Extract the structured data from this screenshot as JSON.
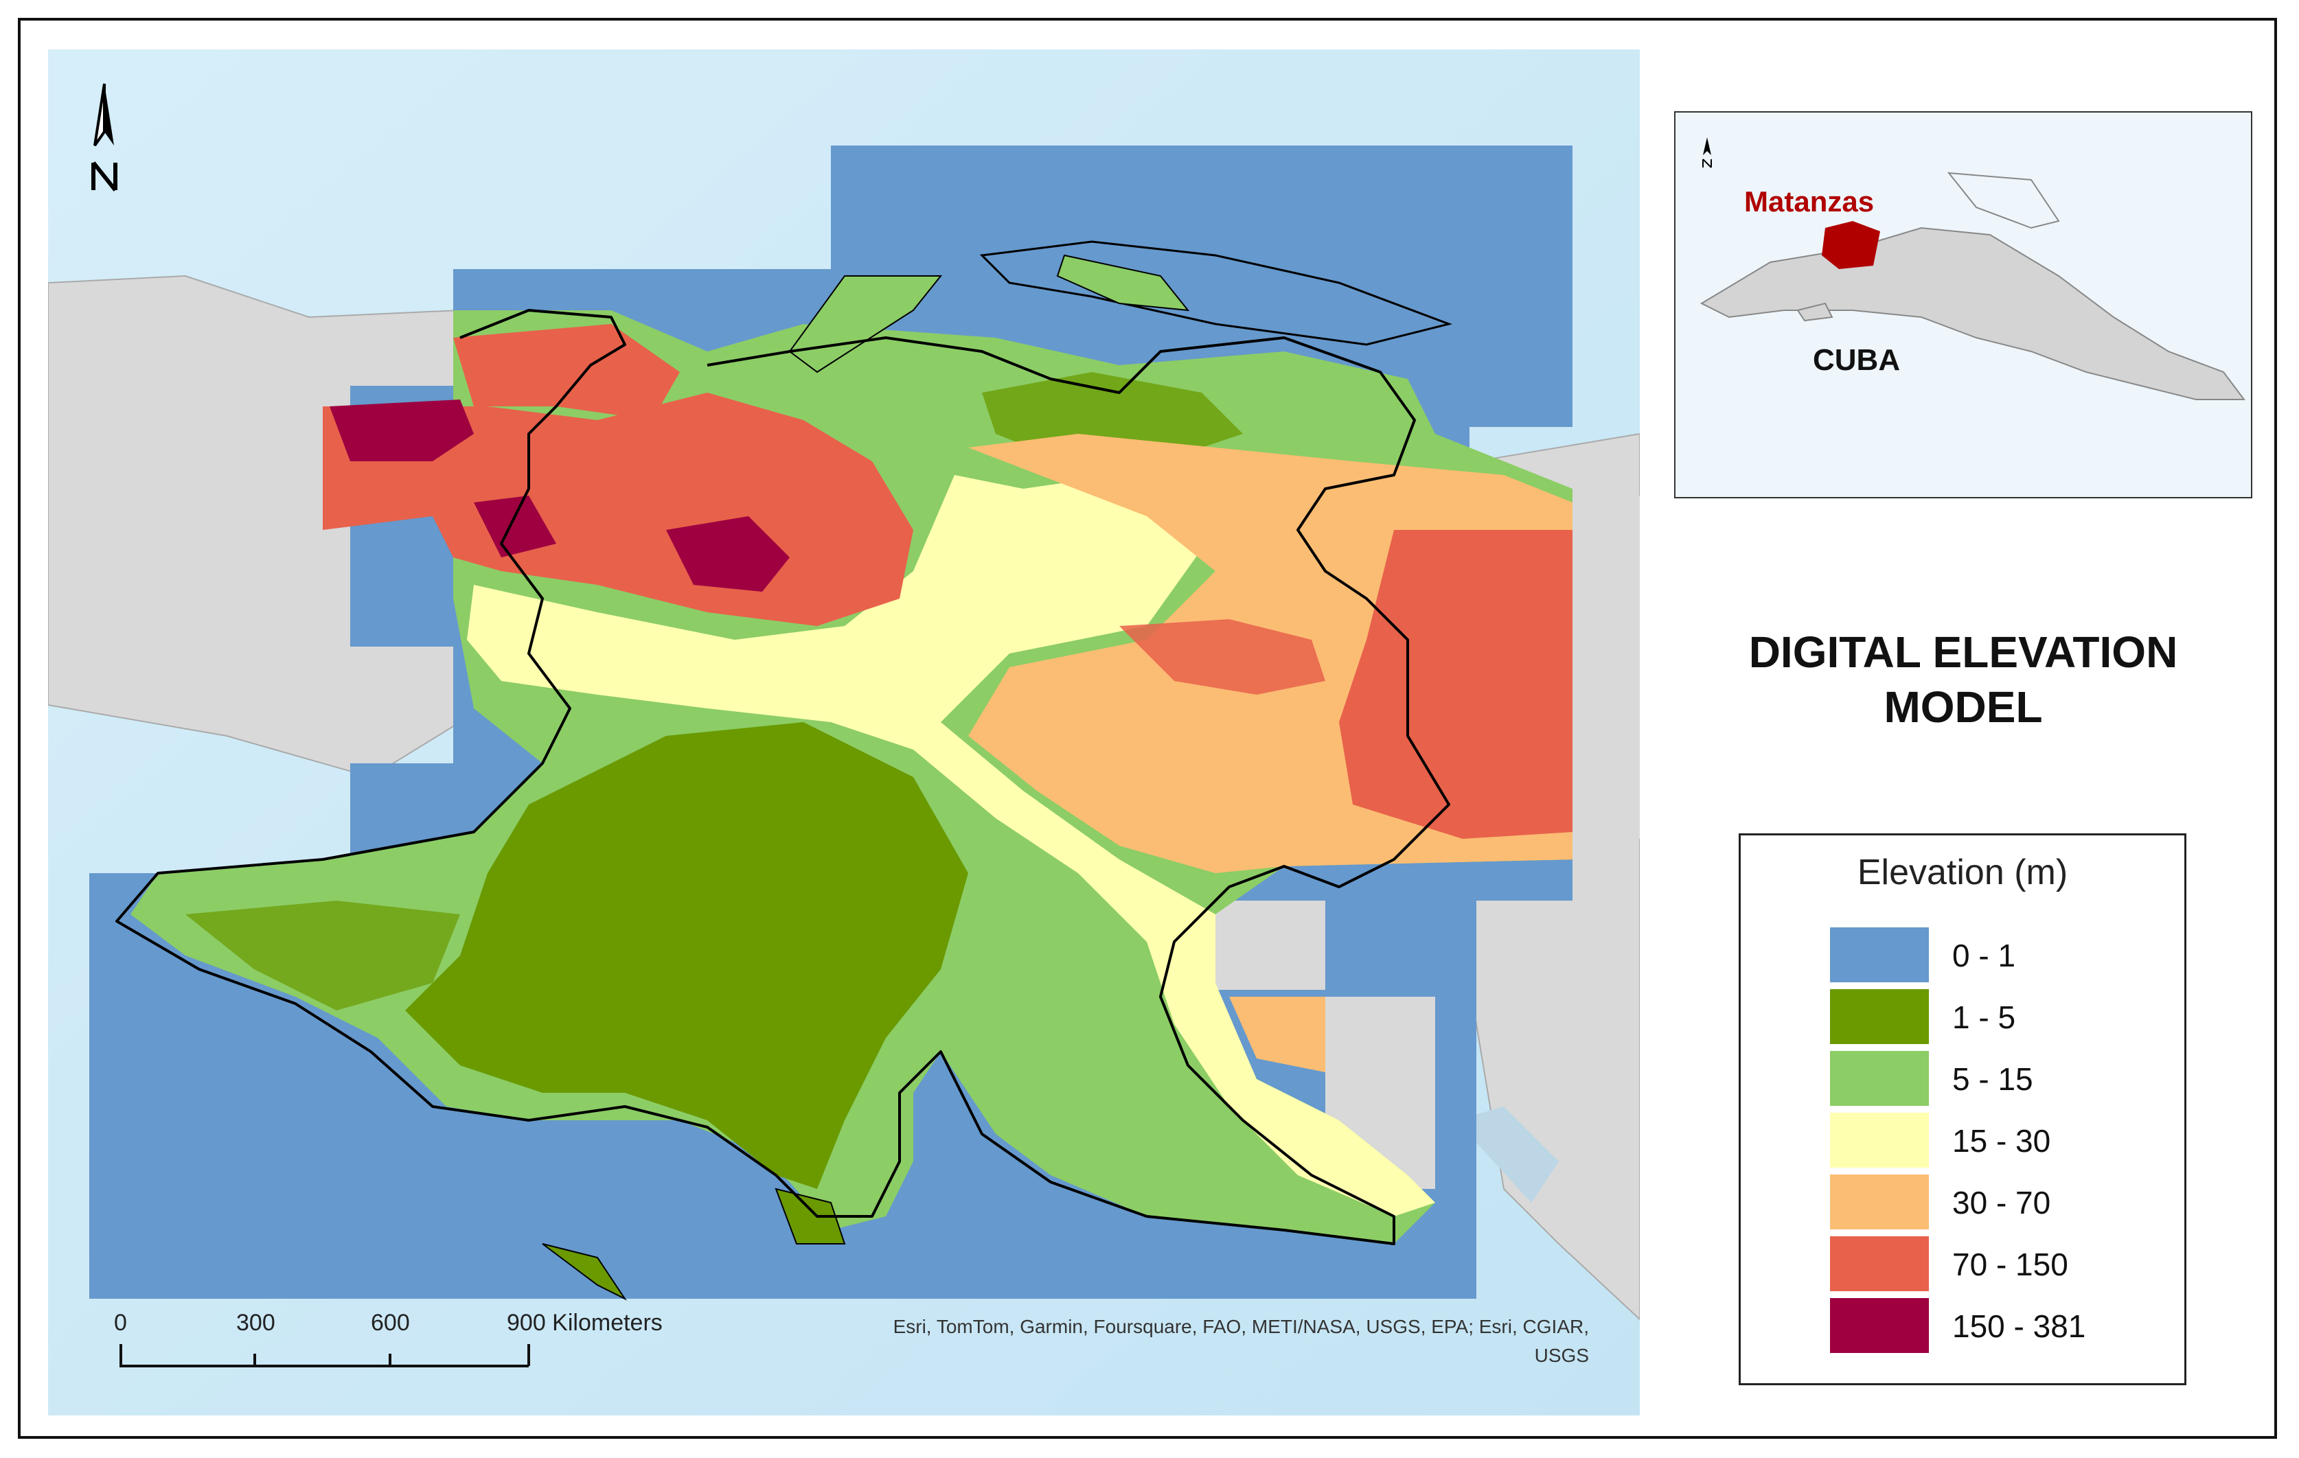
{
  "map_title": "DIGITAL ELEVATION MODEL",
  "map_title_line1": "DIGITAL ELEVATION",
  "map_title_line2": "MODEL",
  "legend": {
    "title": "Elevation (m)",
    "items": [
      {
        "label": "0 - 1",
        "color": "#6699cd"
      },
      {
        "label": "1 - 5",
        "color": "#6a9a00"
      },
      {
        "label": "5 - 15",
        "color": "#8ccd66"
      },
      {
        "label": "15 - 30",
        "color": "#ffffb0"
      },
      {
        "label": "30 - 70",
        "color": "#fbbd73"
      },
      {
        "label": "70 - 150",
        "color": "#e8614b"
      },
      {
        "label": "150 - 381",
        "color": "#9e0040"
      }
    ]
  },
  "inset": {
    "region_label": "Matanzas",
    "country_label": "CUBA",
    "region_color": "#b00000",
    "country_color": "#d4d4d4",
    "sea_color": "#eaf4fb"
  },
  "scale_bar": {
    "ticks": [
      "0",
      "300",
      "600",
      "900 Kilometers"
    ]
  },
  "attribution": {
    "line1": "Esri, TomTom, Garmin, Foursquare, FAO, METI/NASA, USGS, EPA; Esri, CGIAR,",
    "line2": "USGS"
  },
  "colors": {
    "sea": "#cfeaf7",
    "land_outside": "#d9d9d9",
    "boundary": "#000000"
  },
  "icons": {
    "north_arrow": "north-arrow-icon"
  }
}
